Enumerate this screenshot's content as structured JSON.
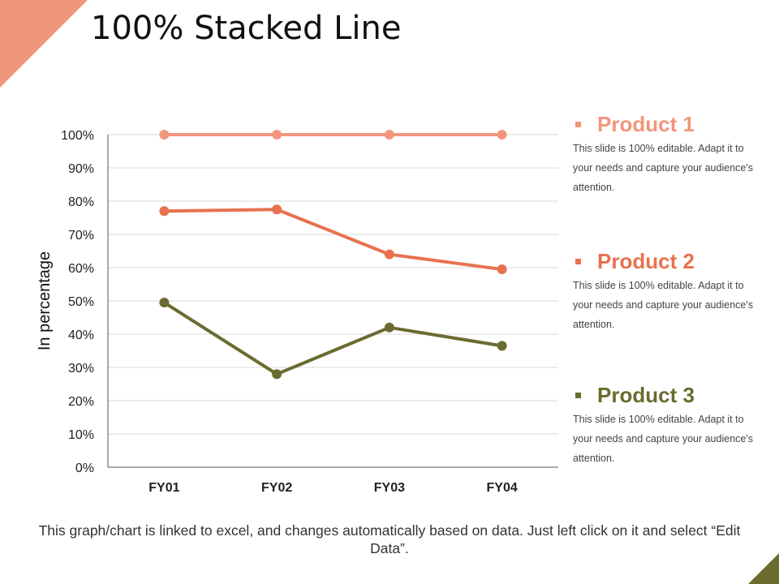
{
  "title": "100% Stacked Line",
  "caption": "This graph/chart is linked to excel, and changes automatically based on data. Just left click on it and select “Edit Data”.",
  "colors": {
    "product1": "#f0967a",
    "product2": "#e8714f",
    "product3": "#6b6b30",
    "accent_top_left": "#f0967a",
    "accent_bottom_right": "#6b6b30"
  },
  "legend": [
    {
      "name": "Product 1",
      "desc": "This slide is 100% editable. Adapt it to your needs and capture your audience's attention."
    },
    {
      "name": "Product 2",
      "desc": "This slide is 100% editable. Adapt it to your needs and capture your audience's attention."
    },
    {
      "name": "Product 3",
      "desc": "This slide is 100% editable. Adapt it to your needs and capture your audience's attention."
    }
  ],
  "chart_data": {
    "type": "line",
    "categories": [
      "FY01",
      "FY02",
      "FY03",
      "FY04"
    ],
    "series": [
      {
        "name": "Product 1",
        "values": [
          100,
          100,
          100,
          100
        ]
      },
      {
        "name": "Product 2",
        "values": [
          77,
          77.5,
          64,
          59.5
        ]
      },
      {
        "name": "Product 3",
        "values": [
          49.5,
          28,
          42,
          36.5
        ]
      }
    ],
    "ylabel": "In percentage",
    "xlabel": "",
    "ylim": [
      0,
      100
    ],
    "yticks": [
      "0%",
      "10%",
      "20%",
      "30%",
      "40%",
      "50%",
      "60%",
      "70%",
      "80%",
      "90%",
      "100%"
    ],
    "grid": true,
    "legend_placement": "right"
  }
}
